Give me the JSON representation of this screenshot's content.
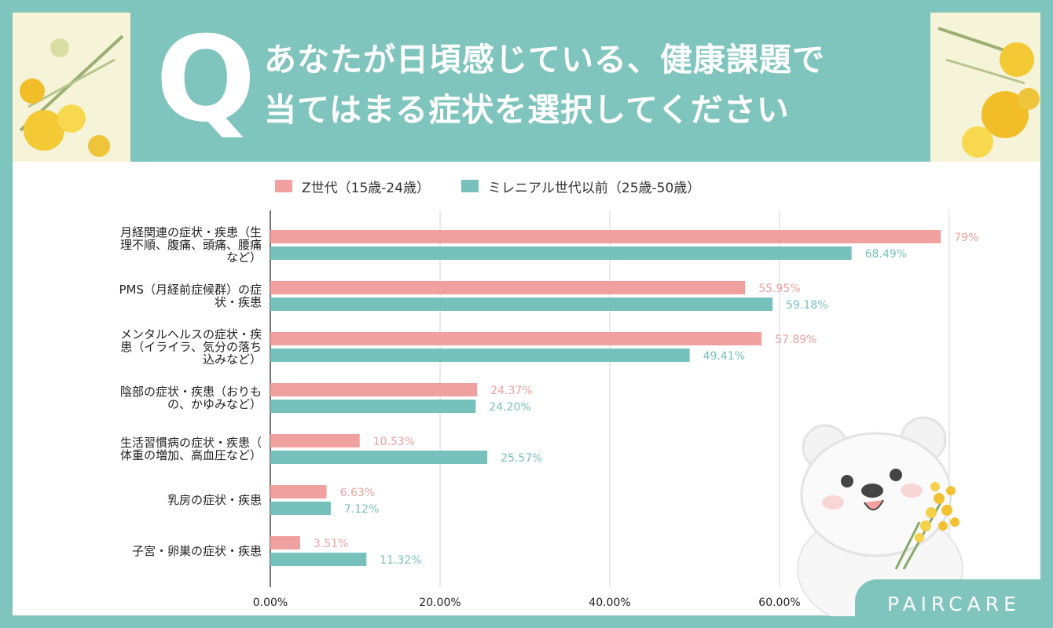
{
  "header": {
    "q": "Q",
    "title_line1": "あなたが日頃感じている、健康課題で",
    "title_line2": "当てはまる症状を選択してください"
  },
  "brand": "PAIRCARE",
  "colors": {
    "series1": "#f0a09e",
    "series2": "#76c1bc",
    "bg": "#80c5bd"
  },
  "chart_data": {
    "type": "bar",
    "orientation": "horizontal",
    "title": "あなたが日頃感じている、健康課題で当てはまる症状を選択してください",
    "categories": [
      [
        "月経関連の症状・疾患（生",
        "理不順、腹痛、頭痛、腰痛",
        "など）"
      ],
      [
        "PMS（月経前症候群）の症",
        "状・疾患"
      ],
      [
        "メンタルヘルスの症状・疾",
        "患（イライラ、気分の落ち",
        "込みなど）"
      ],
      [
        "陰部の症状・疾患（おりも",
        "の、かゆみなど）"
      ],
      [
        "生活習慣病の症状・疾患（",
        "体重の増加、高血圧など）"
      ],
      [
        "乳房の症状・疾患"
      ],
      [
        "子宮・卵巣の症状・疾患"
      ]
    ],
    "series": [
      {
        "name": "Z世代（15歳-24歳）",
        "values": [
          79,
          55.95,
          57.89,
          24.37,
          10.53,
          6.63,
          3.51
        ],
        "labels": [
          "79%",
          "55.95%",
          "57.89%",
          "24.37%",
          "10.53%",
          "6.63%",
          "3.51%"
        ]
      },
      {
        "name": "ミレニアル世代以前（25歳-50歳）",
        "values": [
          68.49,
          59.18,
          49.41,
          24.2,
          25.57,
          7.12,
          11.32
        ],
        "labels": [
          "68.49%",
          "59.18%",
          "49.41%",
          "24.20%",
          "25.57%",
          "7.12%",
          "11.32%"
        ]
      }
    ],
    "xticks": [
      "0.00%",
      "20.00%",
      "40.00%",
      "60.00%"
    ],
    "xtick_values": [
      0,
      20,
      40,
      60
    ],
    "xlim": [
      0,
      80
    ],
    "grid": true,
    "legend_position": "top"
  }
}
